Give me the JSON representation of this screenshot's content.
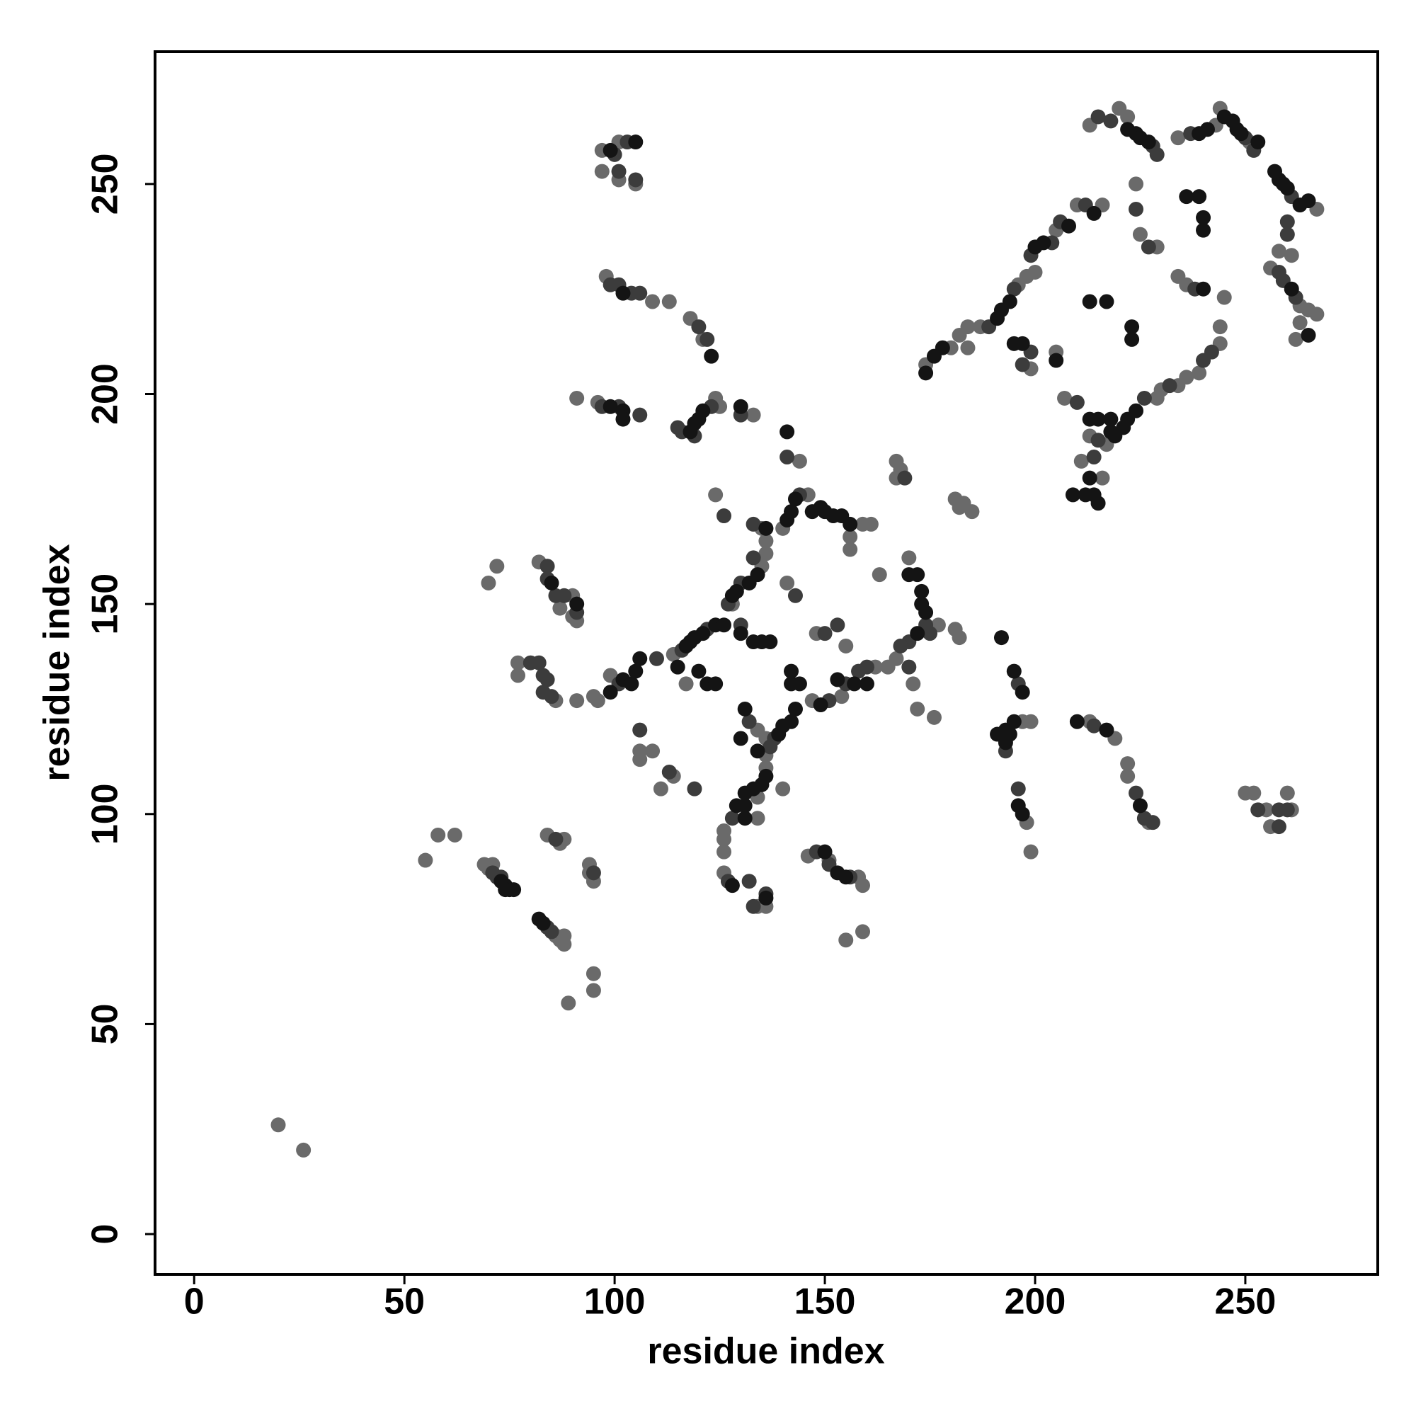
{
  "chart_data": {
    "type": "scatter",
    "xlabel": "residue index",
    "ylabel": "residue index",
    "xlim": [
      -9.3,
      281.5
    ],
    "ylim": [
      -9.6,
      281.5
    ],
    "xticks": [
      0,
      50,
      100,
      150,
      200,
      250
    ],
    "yticks": [
      0,
      50,
      100,
      150,
      200,
      250
    ],
    "series": [
      {
        "color": "#6a6a6a",
        "x": [
          20,
          26,
          55,
          58,
          62,
          69,
          70,
          71,
          86,
          87,
          88,
          88,
          84,
          88,
          87,
          94,
          95,
          94,
          95,
          95,
          89,
          70,
          72,
          82,
          90,
          90,
          87,
          91,
          77,
          77,
          86,
          91,
          95,
          96,
          99,
          114,
          117,
          106,
          106,
          109,
          111,
          114,
          97,
          101,
          97,
          101,
          105,
          98,
          109,
          113,
          118,
          121,
          91,
          96,
          124,
          125,
          133,
          144,
          124,
          135,
          140,
          146,
          159,
          161,
          156,
          156,
          136,
          136,
          135,
          128,
          141,
          163,
          170,
          177,
          167,
          171,
          165,
          162,
          154,
          147,
          148,
          155,
          172,
          176,
          181,
          182,
          136,
          136,
          126,
          126,
          126,
          134,
          134,
          140,
          134,
          136,
          126,
          134,
          136,
          146,
          151,
          158,
          159,
          155,
          159,
          197,
          199,
          198,
          199,
          213,
          219,
          222,
          222,
          227,
          250,
          252,
          255,
          256,
          260,
          261,
          167,
          168,
          181,
          182,
          183,
          185,
          167,
          213,
          220,
          222,
          234,
          243,
          244,
          251,
          267,
          258,
          261,
          256,
          263,
          265,
          267,
          263,
          262,
          224,
          225,
          229,
          245,
          234,
          236,
          244,
          244,
          239,
          236,
          234,
          230,
          229,
          217,
          207,
          210,
          216,
          205,
          200,
          198,
          196,
          187,
          184,
          182,
          180,
          174,
          184,
          199,
          205,
          211,
          216,
          213
        ],
        "values": [
          26,
          20,
          89,
          95,
          95,
          88,
          87,
          88,
          71,
          70,
          69,
          71,
          95,
          94,
          93,
          88,
          84,
          86,
          62,
          58,
          55,
          155,
          159,
          160,
          152,
          147,
          149,
          146,
          136,
          133,
          127,
          127,
          128,
          127,
          133,
          138,
          131,
          115,
          113,
          115,
          106,
          109,
          258,
          260,
          253,
          251,
          250,
          228,
          222,
          222,
          218,
          213,
          199,
          198,
          199,
          197,
          195,
          184,
          176,
          168,
          168,
          176,
          169,
          169,
          166,
          163,
          165,
          162,
          159,
          150,
          155,
          157,
          161,
          145,
          137,
          131,
          135,
          135,
          128,
          127,
          143,
          140,
          125,
          123,
          144,
          142,
          114,
          111,
          96,
          94,
          91,
          99,
          104,
          106,
          120,
          118,
          86,
          78,
          78,
          90,
          89,
          85,
          83,
          70,
          72,
          122,
          122,
          98,
          91,
          122,
          118,
          112,
          109,
          98,
          105,
          105,
          101,
          97,
          105,
          101,
          184,
          182,
          175,
          173,
          174,
          172,
          180,
          264,
          268,
          266,
          261,
          264,
          268,
          260,
          244,
          234,
          233,
          230,
          221,
          220,
          219,
          217,
          213,
          250,
          238,
          235,
          223,
          228,
          226,
          216,
          212,
          205,
          204,
          202,
          201,
          199,
          188,
          199,
          245,
          245,
          239,
          229,
          228,
          226,
          216,
          216,
          214,
          211,
          207,
          211,
          206,
          210,
          184,
          180,
          190
        ]
      },
      {
        "color": "#3c3c3c",
        "x": [
          71,
          72,
          73,
          84,
          85,
          86,
          95,
          84,
          84,
          86,
          88,
          91,
          80,
          82,
          83,
          84,
          83,
          85,
          101,
          110,
          116,
          122,
          106,
          113,
          119,
          100,
          103,
          101,
          105,
          99,
          101,
          104,
          106,
          120,
          122,
          97,
          101,
          106,
          115,
          116,
          119,
          123,
          130,
          141,
          126,
          133,
          144,
          133,
          130,
          130,
          143,
          127,
          174,
          175,
          170,
          168,
          170,
          160,
          158,
          155,
          151,
          150,
          153,
          138,
          137,
          128,
          132,
          127,
          132,
          133,
          136,
          148,
          151,
          156,
          196,
          193,
          196,
          214,
          224,
          226,
          228,
          253,
          258,
          258,
          260,
          169,
          215,
          218,
          228,
          229,
          237,
          250,
          252,
          261,
          260,
          260,
          258,
          259,
          262,
          224,
          227,
          238,
          242,
          240,
          232,
          226,
          215,
          210,
          212,
          206,
          204,
          199,
          195,
          189,
          199,
          197,
          214
        ],
        "values": [
          86,
          85,
          85,
          73,
          72,
          94,
          86,
          159,
          156,
          152,
          152,
          148,
          136,
          136,
          133,
          132,
          129,
          128,
          131,
          137,
          139,
          144,
          120,
          110,
          106,
          257,
          260,
          253,
          251,
          226,
          226,
          224,
          224,
          216,
          213,
          197,
          197,
          195,
          192,
          191,
          190,
          197,
          195,
          185,
          171,
          169,
          176,
          161,
          155,
          145,
          152,
          150,
          145,
          143,
          141,
          140,
          135,
          135,
          134,
          131,
          127,
          143,
          145,
          118,
          116,
          99,
          122,
          84,
          84,
          78,
          81,
          91,
          88,
          85,
          131,
          115,
          106,
          121,
          105,
          99,
          98,
          101,
          101,
          97,
          101,
          180,
          266,
          265,
          259,
          257,
          262,
          261,
          258,
          247,
          241,
          238,
          229,
          227,
          223,
          244,
          235,
          225,
          210,
          208,
          202,
          199,
          189,
          198,
          245,
          241,
          236,
          233,
          225,
          216,
          210,
          207,
          185
        ]
      },
      {
        "color": "#141414",
        "x": [
          73,
          74,
          75,
          74,
          76,
          82,
          83,
          85,
          91,
          99,
          102,
          104,
          105,
          106,
          117,
          118,
          119,
          121,
          124,
          120,
          122,
          124,
          115,
          99,
          105,
          102,
          123,
          99,
          102,
          102,
          118,
          119,
          120,
          121,
          130,
          141,
          136,
          141,
          142,
          143,
          147,
          149,
          150,
          152,
          154,
          156,
          134,
          132,
          129,
          130,
          133,
          135,
          137,
          126,
          128,
          170,
          172,
          173,
          173,
          174,
          172,
          157,
          149,
          153,
          160,
          142,
          142,
          144,
          143,
          142,
          140,
          139,
          136,
          135,
          133,
          131,
          131,
          131,
          129,
          130,
          131,
          134,
          128,
          136,
          150,
          153,
          155,
          192,
          195,
          197,
          191,
          193,
          194,
          193,
          195,
          196,
          197,
          210,
          217,
          225,
          222,
          224,
          225,
          227,
          239,
          241,
          245,
          247,
          248,
          249,
          253,
          257,
          258,
          259,
          260,
          263,
          265,
          261,
          265,
          236,
          239,
          240,
          240,
          240,
          224,
          222,
          221,
          219,
          218,
          218,
          215,
          213,
          213,
          217,
          223,
          223,
          214,
          208,
          202,
          200,
          194,
          192,
          191,
          178,
          176,
          174,
          195,
          197,
          205,
          213,
          212,
          214,
          215,
          209
        ],
        "values": [
          84,
          83,
          82,
          82,
          82,
          75,
          74,
          155,
          150,
          129,
          132,
          131,
          134,
          137,
          140,
          141,
          142,
          143,
          145,
          134,
          131,
          131,
          135,
          258,
          260,
          224,
          209,
          197,
          196,
          194,
          191,
          193,
          194,
          196,
          197,
          191,
          168,
          170,
          172,
          175,
          172,
          173,
          172,
          171,
          171,
          169,
          157,
          155,
          153,
          143,
          141,
          141,
          141,
          145,
          152,
          157,
          157,
          153,
          150,
          148,
          143,
          131,
          126,
          132,
          131,
          134,
          131,
          131,
          125,
          122,
          121,
          119,
          109,
          107,
          106,
          105,
          102,
          99,
          102,
          118,
          125,
          115,
          83,
          80,
          91,
          86,
          85,
          142,
          134,
          129,
          119,
          120,
          119,
          117,
          122,
          102,
          100,
          122,
          120,
          102,
          263,
          262,
          261,
          260,
          262,
          263,
          266,
          265,
          263,
          262,
          260,
          253,
          251,
          250,
          249,
          245,
          246,
          225,
          214,
          247,
          247,
          242,
          239,
          225,
          196,
          194,
          192,
          190,
          191,
          194,
          194,
          194,
          222,
          222,
          216,
          213,
          243,
          240,
          236,
          235,
          222,
          220,
          218,
          211,
          209,
          205,
          212,
          212,
          208,
          180,
          176,
          176,
          174,
          176
        ]
      }
    ]
  }
}
